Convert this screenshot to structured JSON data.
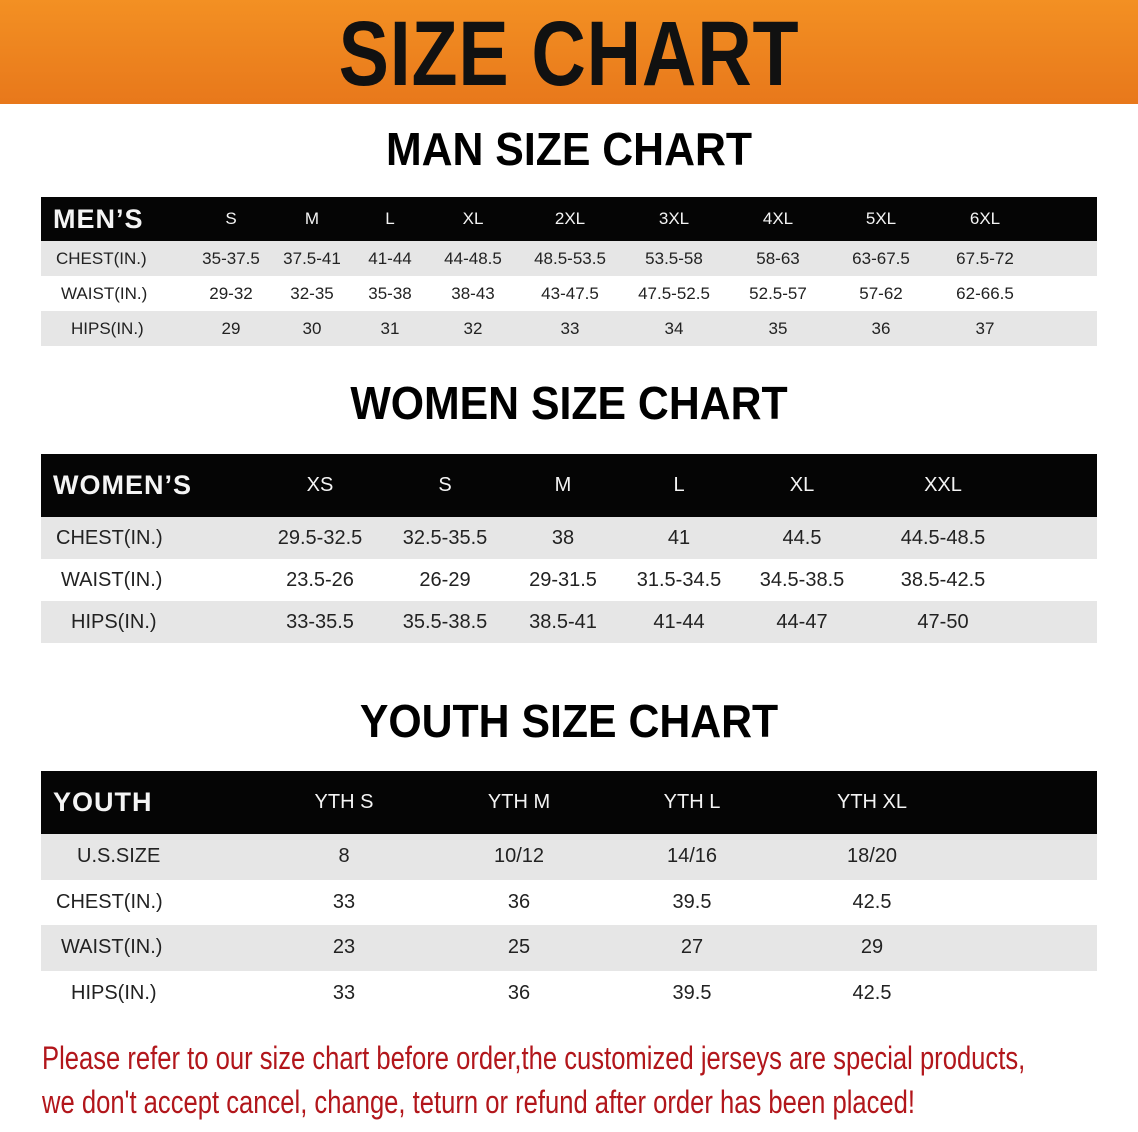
{
  "banner_title": "SIZE CHART",
  "men": {
    "title": "MAN SIZE CHART",
    "header": [
      "MEN’S",
      "S",
      "M",
      "L",
      "XL",
      "2XL",
      "3XL",
      "4XL",
      "5XL",
      "6XL"
    ],
    "rows": [
      [
        "CHEST(IN.)",
        "35-37.5",
        "37.5-41",
        "41-44",
        "44-48.5",
        "48.5-53.5",
        "53.5-58",
        "58-63",
        "63-67.5",
        "67.5-72"
      ],
      [
        "WAIST(IN.)",
        "29-32",
        "32-35",
        "35-38",
        "38-43",
        "43-47.5",
        "47.5-52.5",
        "52.5-57",
        "57-62",
        "62-66.5"
      ],
      [
        "HIPS(IN.)",
        "29",
        "30",
        "31",
        "32",
        "33",
        "34",
        "35",
        "36",
        "37"
      ]
    ]
  },
  "women": {
    "title": "WOMEN SIZE CHART",
    "header": [
      "WOMEN’S",
      "XS",
      "S",
      "M",
      "L",
      "XL",
      "XXL"
    ],
    "rows": [
      [
        "CHEST(IN.)",
        "29.5-32.5",
        "32.5-35.5",
        "38",
        "41",
        "44.5",
        "44.5-48.5"
      ],
      [
        "WAIST(IN.)",
        "23.5-26",
        "26-29",
        "29-31.5",
        "31.5-34.5",
        "34.5-38.5",
        "38.5-42.5"
      ],
      [
        "HIPS(IN.)",
        "33-35.5",
        "35.5-38.5",
        "38.5-41",
        "41-44",
        "44-47",
        "47-50"
      ]
    ]
  },
  "youth": {
    "title": "YOUTH SIZE CHART",
    "header": [
      "YOUTH",
      "YTH S",
      "YTH M",
      "YTH L",
      "YTH XL"
    ],
    "rows": [
      [
        "U.S.SIZE",
        "8",
        "10/12",
        "14/16",
        "18/20"
      ],
      [
        "CHEST(IN.)",
        "33",
        "36",
        "39.5",
        "42.5"
      ],
      [
        "WAIST(IN.)",
        "23",
        "25",
        "27",
        "29"
      ],
      [
        "HIPS(IN.)",
        "33",
        "36",
        "39.5",
        "42.5"
      ]
    ]
  },
  "footer": {
    "line1": "Please refer to our size chart before order,the customized jerseys are special products,",
    "line2": "we don't accept cancel, change, teturn or refund after order has been placed!"
  },
  "colors": {
    "banner": "#ef8420",
    "header_row": "#050505",
    "stripe": "#e6e6e6",
    "notice": "#b2161b"
  }
}
